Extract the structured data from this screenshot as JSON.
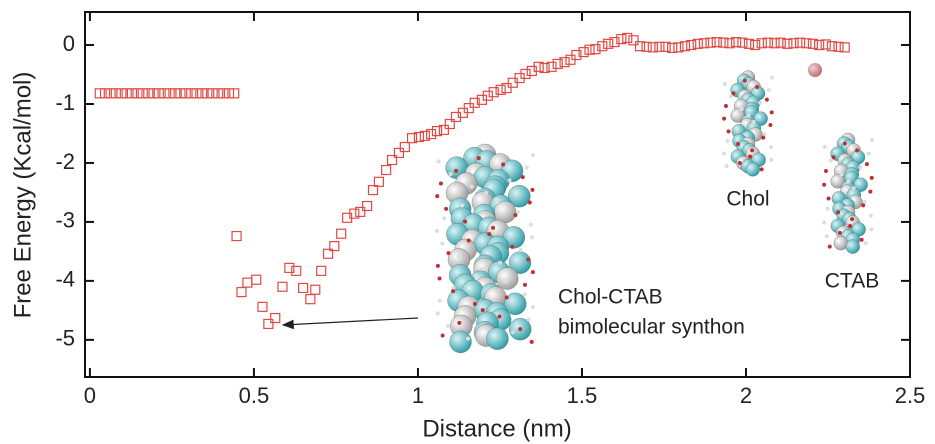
{
  "chart_data": {
    "type": "scatter",
    "x_label": "Distance (nm)",
    "y_label": "Free Energy (Kcal/mol)",
    "annotations": [
      "Chol",
      "CTAB",
      "Chol-CTAB",
      "bimolecular synthon"
    ],
    "series": [
      {
        "color": "#e04a44",
        "x": [
          0.03,
          0.046,
          0.063,
          0.079,
          0.096,
          0.112,
          0.128,
          0.145,
          0.161,
          0.178,
          0.194,
          0.21,
          0.227,
          0.243,
          0.26,
          0.276,
          0.292,
          0.309,
          0.325,
          0.342,
          0.358,
          0.374,
          0.391,
          0.407,
          0.424,
          0.44,
          0.447,
          0.462,
          0.48,
          0.507,
          0.526,
          0.544,
          0.565,
          0.587,
          0.608,
          0.629,
          0.65,
          0.672,
          0.687,
          0.705,
          0.726,
          0.745,
          0.766,
          0.784,
          0.806,
          0.824,
          0.845,
          0.863,
          0.881,
          0.903,
          0.921,
          0.942,
          0.96,
          0.982,
          1.003,
          1.021,
          1.04,
          1.058,
          1.079,
          1.097,
          1.116,
          1.137,
          1.155,
          1.173,
          1.195,
          1.213,
          1.231,
          1.252,
          1.27,
          1.289,
          1.31,
          1.328,
          1.347,
          1.368,
          1.386,
          1.407,
          1.426,
          1.447,
          1.465,
          1.483,
          1.505,
          1.523,
          1.541,
          1.562,
          1.58,
          1.599,
          1.62,
          1.638,
          1.657,
          1.677,
          1.697,
          1.716,
          1.736,
          1.755,
          1.775,
          1.794,
          1.814,
          1.833,
          1.853,
          1.872,
          1.892,
          1.911,
          1.931,
          1.95,
          1.97,
          1.989,
          2.009,
          2.028,
          2.048,
          2.067,
          2.087,
          2.106,
          2.126,
          2.145,
          2.165,
          2.184,
          2.204,
          2.223,
          2.243,
          2.262,
          2.282,
          2.301
        ],
        "values": [
          -0.82,
          -0.82,
          -0.82,
          -0.82,
          -0.82,
          -0.82,
          -0.82,
          -0.82,
          -0.82,
          -0.82,
          -0.82,
          -0.82,
          -0.82,
          -0.82,
          -0.82,
          -0.82,
          -0.82,
          -0.82,
          -0.82,
          -0.82,
          -0.82,
          -0.82,
          -0.82,
          -0.82,
          -0.82,
          -0.82,
          -3.24,
          -4.19,
          -4.03,
          -3.98,
          -4.44,
          -4.73,
          -4.63,
          -4.1,
          -3.78,
          -3.83,
          -4.12,
          -4.31,
          -4.15,
          -3.83,
          -3.54,
          -3.41,
          -3.2,
          -2.93,
          -2.86,
          -2.83,
          -2.73,
          -2.46,
          -2.32,
          -2.12,
          -1.95,
          -1.83,
          -1.73,
          -1.58,
          -1.56,
          -1.54,
          -1.51,
          -1.46,
          -1.44,
          -1.34,
          -1.22,
          -1.15,
          -1.07,
          -0.98,
          -0.93,
          -0.86,
          -0.8,
          -0.76,
          -0.73,
          -0.64,
          -0.56,
          -0.49,
          -0.44,
          -0.37,
          -0.39,
          -0.37,
          -0.32,
          -0.29,
          -0.25,
          -0.17,
          -0.12,
          -0.08,
          -0.07,
          -0.02,
          0.02,
          0.05,
          0.1,
          0.12,
          0.08,
          -0.02,
          -0.03,
          -0.04,
          -0.03,
          -0.03,
          -0.05,
          -0.04,
          -0.02,
          0.0,
          0.02,
          0.03,
          0.04,
          0.05,
          0.04,
          0.03,
          0.05,
          0.04,
          0.02,
          0.0,
          0.03,
          0.04,
          0.03,
          0.04,
          0.02,
          0.03,
          0.04,
          0.03,
          0.02,
          0.0,
          0.01,
          -0.02,
          -0.03,
          -0.04
        ]
      }
    ],
    "xlim": [
      -0.015,
      2.5
    ],
    "ylim": [
      -5.63,
      0.56
    ],
    "xticks": [
      0,
      0.5,
      1,
      1.5,
      2,
      2.5
    ],
    "yticks": [
      0,
      -1,
      -2,
      -3,
      -4,
      -5
    ]
  }
}
